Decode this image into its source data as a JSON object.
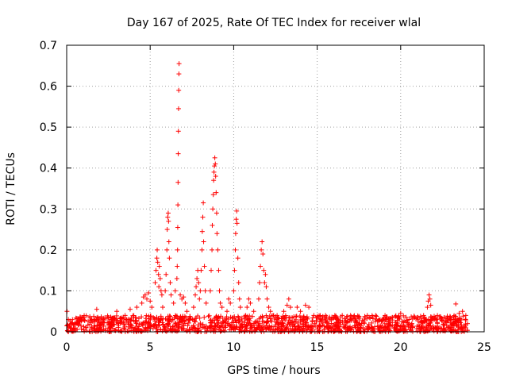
{
  "chart_data": {
    "type": "scatter",
    "title": "Day 167 of 2025, Rate Of TEC Index for receiver wlal",
    "xlabel": "GPS time / hours",
    "ylabel": "ROTI / TECUs",
    "xlim": [
      0,
      25
    ],
    "ylim": [
      0,
      0.7
    ],
    "xticks": [
      0,
      5,
      10,
      15,
      20,
      25
    ],
    "xtick_labels": [
      "0",
      "5",
      "10",
      "15",
      "20",
      "25"
    ],
    "yticks": [
      0,
      0.1,
      0.2,
      0.3,
      0.4,
      0.5,
      0.6,
      0.7
    ],
    "ytick_labels": [
      "0",
      "0.1",
      "0.2",
      "0.3",
      "0.4",
      "0.5",
      "0.6",
      "0.7"
    ],
    "grid": true,
    "marker": "+",
    "color": "#ff0000",
    "x_range_of_data": [
      0,
      24
    ],
    "baseline_range": [
      0,
      0.04
    ],
    "series": [
      {
        "name": "ROTI",
        "points": [
          [
            0.02,
            0.05
          ],
          [
            0.1,
            0.03
          ],
          [
            0.5,
            0.02
          ],
          [
            1.0,
            0.035
          ],
          [
            1.5,
            0.03
          ],
          [
            1.8,
            0.055
          ],
          [
            2.2,
            0.03
          ],
          [
            2.5,
            0.035
          ],
          [
            3.0,
            0.05
          ],
          [
            3.5,
            0.04
          ],
          [
            3.8,
            0.055
          ],
          [
            4.2,
            0.06
          ],
          [
            4.5,
            0.07
          ],
          [
            4.6,
            0.085
          ],
          [
            4.7,
            0.09
          ],
          [
            4.8,
            0.08
          ],
          [
            4.9,
            0.095
          ],
          [
            5.0,
            0.075
          ],
          [
            5.1,
            0.06
          ],
          [
            5.3,
            0.12
          ],
          [
            5.35,
            0.15
          ],
          [
            5.4,
            0.18
          ],
          [
            5.42,
            0.2
          ],
          [
            5.45,
            0.17
          ],
          [
            5.5,
            0.14
          ],
          [
            5.52,
            0.11
          ],
          [
            5.55,
            0.16
          ],
          [
            5.6,
            0.13
          ],
          [
            5.65,
            0.1
          ],
          [
            5.7,
            0.09
          ],
          [
            5.75,
            0.06
          ],
          [
            5.9,
            0.1
          ],
          [
            5.95,
            0.14
          ],
          [
            6.0,
            0.2
          ],
          [
            6.02,
            0.25
          ],
          [
            6.05,
            0.28
          ],
          [
            6.08,
            0.29
          ],
          [
            6.1,
            0.27
          ],
          [
            6.12,
            0.22
          ],
          [
            6.15,
            0.18
          ],
          [
            6.2,
            0.12
          ],
          [
            6.25,
            0.09
          ],
          [
            6.4,
            0.07
          ],
          [
            6.5,
            0.1
          ],
          [
            6.6,
            0.13
          ],
          [
            6.62,
            0.16
          ],
          [
            6.64,
            0.2
          ],
          [
            6.65,
            0.255
          ],
          [
            6.66,
            0.31
          ],
          [
            6.67,
            0.365
          ],
          [
            6.68,
            0.435
          ],
          [
            6.69,
            0.49
          ],
          [
            6.7,
            0.545
          ],
          [
            6.71,
            0.59
          ],
          [
            6.72,
            0.63
          ],
          [
            6.73,
            0.655
          ],
          [
            6.8,
            0.09
          ],
          [
            6.9,
            0.08
          ],
          [
            7.0,
            0.085
          ],
          [
            7.1,
            0.07
          ],
          [
            7.2,
            0.05
          ],
          [
            7.6,
            0.06
          ],
          [
            7.7,
            0.09
          ],
          [
            7.75,
            0.11
          ],
          [
            7.8,
            0.13
          ],
          [
            7.85,
            0.15
          ],
          [
            7.9,
            0.12
          ],
          [
            7.95,
            0.08
          ],
          [
            8.0,
            0.1
          ],
          [
            8.05,
            0.15
          ],
          [
            8.1,
            0.2
          ],
          [
            8.12,
            0.245
          ],
          [
            8.15,
            0.28
          ],
          [
            8.18,
            0.315
          ],
          [
            8.2,
            0.22
          ],
          [
            8.25,
            0.16
          ],
          [
            8.3,
            0.1
          ],
          [
            8.35,
            0.07
          ],
          [
            8.6,
            0.1
          ],
          [
            8.65,
            0.15
          ],
          [
            8.7,
            0.2
          ],
          [
            8.72,
            0.26
          ],
          [
            8.75,
            0.3
          ],
          [
            8.78,
            0.335
          ],
          [
            8.8,
            0.37
          ],
          [
            8.82,
            0.39
          ],
          [
            8.85,
            0.405
          ],
          [
            8.87,
            0.425
          ],
          [
            8.9,
            0.41
          ],
          [
            8.92,
            0.38
          ],
          [
            8.95,
            0.34
          ],
          [
            8.98,
            0.29
          ],
          [
            9.0,
            0.24
          ],
          [
            9.05,
            0.2
          ],
          [
            9.1,
            0.15
          ],
          [
            9.15,
            0.1
          ],
          [
            9.2,
            0.07
          ],
          [
            9.3,
            0.06
          ],
          [
            9.6,
            0.05
          ],
          [
            9.7,
            0.08
          ],
          [
            9.8,
            0.07
          ],
          [
            10.0,
            0.1
          ],
          [
            10.05,
            0.15
          ],
          [
            10.1,
            0.2
          ],
          [
            10.12,
            0.24
          ],
          [
            10.15,
            0.275
          ],
          [
            10.18,
            0.295
          ],
          [
            10.2,
            0.265
          ],
          [
            10.25,
            0.18
          ],
          [
            10.3,
            0.12
          ],
          [
            10.35,
            0.08
          ],
          [
            10.4,
            0.06
          ],
          [
            10.8,
            0.06
          ],
          [
            10.9,
            0.08
          ],
          [
            11.0,
            0.07
          ],
          [
            11.2,
            0.05
          ],
          [
            11.5,
            0.08
          ],
          [
            11.55,
            0.12
          ],
          [
            11.6,
            0.16
          ],
          [
            11.65,
            0.2
          ],
          [
            11.7,
            0.22
          ],
          [
            11.75,
            0.19
          ],
          [
            11.8,
            0.15
          ],
          [
            11.85,
            0.12
          ],
          [
            11.9,
            0.14
          ],
          [
            11.95,
            0.11
          ],
          [
            12.0,
            0.08
          ],
          [
            12.1,
            0.06
          ],
          [
            12.2,
            0.05
          ],
          [
            12.6,
            0.04
          ],
          [
            13.0,
            0.05
          ],
          [
            13.2,
            0.065
          ],
          [
            13.3,
            0.08
          ],
          [
            13.4,
            0.06
          ],
          [
            13.8,
            0.06
          ],
          [
            14.0,
            0.05
          ],
          [
            14.3,
            0.065
          ],
          [
            14.5,
            0.06
          ],
          [
            14.8,
            0.04
          ],
          [
            15.5,
            0.04
          ],
          [
            16.0,
            0.035
          ],
          [
            16.5,
            0.04
          ],
          [
            17.0,
            0.04
          ],
          [
            17.5,
            0.035
          ],
          [
            18.0,
            0.04
          ],
          [
            18.5,
            0.04
          ],
          [
            19.0,
            0.035
          ],
          [
            19.5,
            0.035
          ],
          [
            20.0,
            0.045
          ],
          [
            20.5,
            0.03
          ],
          [
            21.0,
            0.035
          ],
          [
            21.6,
            0.06
          ],
          [
            21.65,
            0.075
          ],
          [
            21.7,
            0.09
          ],
          [
            21.75,
            0.08
          ],
          [
            21.8,
            0.065
          ],
          [
            22.2,
            0.04
          ],
          [
            22.6,
            0.035
          ],
          [
            23.0,
            0.03
          ],
          [
            23.3,
            0.068
          ],
          [
            23.5,
            0.045
          ],
          [
            23.7,
            0.05
          ],
          [
            23.9,
            0.04
          ],
          [
            24.0,
            0.02
          ]
        ]
      }
    ]
  }
}
